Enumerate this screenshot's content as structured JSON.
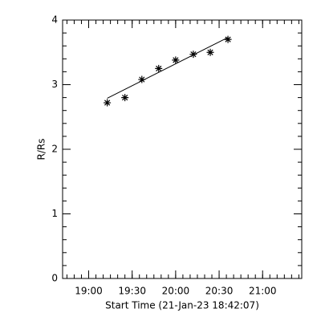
{
  "chart_data": {
    "type": "scatter",
    "xlabel": "Start Time (21-Jan-23 18:42:07)",
    "ylabel": "R/Rs",
    "xlim": [
      1122,
      1287
    ],
    "xticks": [
      {
        "value": 1140,
        "label": "19:00"
      },
      {
        "value": 1170,
        "label": "19:30"
      },
      {
        "value": 1200,
        "label": "20:00"
      },
      {
        "value": 1230,
        "label": "20:30"
      },
      {
        "value": 1260,
        "label": "21:00"
      }
    ],
    "xminor": 6,
    "ylim": [
      0,
      4
    ],
    "yticks": [
      0,
      1,
      2,
      3,
      4
    ],
    "yminor": 5,
    "series": [
      {
        "color": "#000000",
        "marker": "asterisk",
        "x": [
          1152.8,
          1165.0,
          1176.7,
          1188.3,
          1200.0,
          1212.2,
          1223.9,
          1236.1
        ],
        "values": [
          2.72,
          2.8,
          3.08,
          3.25,
          3.38,
          3.47,
          3.5,
          3.7
        ]
      }
    ],
    "fit_line": {
      "color": "#000000",
      "x": [
        1152.8,
        1236.1
      ],
      "values": [
        2.79,
        3.73
      ]
    }
  }
}
